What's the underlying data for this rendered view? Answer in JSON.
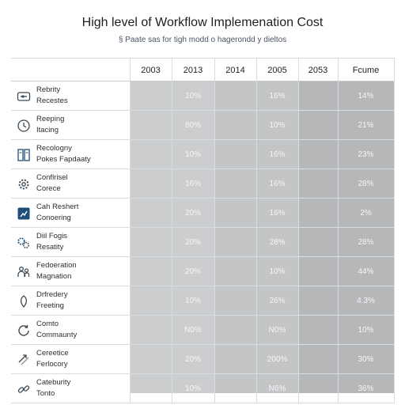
{
  "title": "High level of Workflow Implemenation Cost",
  "subtitle": "§ Paate sas for tigh modd o hagerondd y dieltos",
  "colors": {
    "col_light": "#cbcdcf",
    "col_mid": "#c3c5c7",
    "col_dark": "#b5b7b9",
    "icon": "#3b4a55",
    "icon_accent": "#1f4e79"
  },
  "chart_data": {
    "type": "table",
    "columns": [
      "2003",
      "2013",
      "2014",
      "2005",
      "2053",
      "Fcume"
    ],
    "rows": [
      {
        "label": [
          "Rebrity",
          "Recestes"
        ],
        "icon": "sliders-icon",
        "values": [
          "",
          "10%",
          "",
          "16%",
          "",
          "14%"
        ]
      },
      {
        "label": [
          "Reeping",
          "Itacing"
        ],
        "icon": "clock-icon",
        "values": [
          "",
          "80%",
          "",
          "10%",
          "",
          "21%"
        ]
      },
      {
        "label": [
          "Recologny",
          "Pokes Fapdaaty"
        ],
        "icon": "document-icon",
        "values": [
          "",
          "10%",
          "",
          "16%",
          "",
          "23%"
        ]
      },
      {
        "label": [
          "Conflrisel",
          "Corece"
        ],
        "icon": "gear-icon",
        "values": [
          "",
          "16%",
          "",
          "16%",
          "",
          "28%"
        ]
      },
      {
        "label": [
          "Cah Reshert",
          "Conoering"
        ],
        "icon": "chart-icon",
        "values": [
          "",
          "20%",
          "",
          "16%",
          "",
          "2%"
        ]
      },
      {
        "label": [
          "Diil Fogis",
          "Resatity"
        ],
        "icon": "cogs-icon",
        "values": [
          "",
          "20%",
          "",
          "28%",
          "",
          "28%"
        ]
      },
      {
        "label": [
          "Fedoeration",
          "Magnation"
        ],
        "icon": "people-icon",
        "values": [
          "",
          "20%",
          "",
          "10%",
          "",
          "44%"
        ]
      },
      {
        "label": [
          "Drfredery",
          "Freeting"
        ],
        "icon": "leaf-icon",
        "values": [
          "",
          "10%",
          "",
          "26%",
          "",
          "4.3%"
        ]
      },
      {
        "label": [
          "Comto",
          "Commaunty"
        ],
        "icon": "refresh-icon",
        "values": [
          "",
          "N0%",
          "",
          "N0%",
          "",
          "10%"
        ]
      },
      {
        "label": [
          "Cereetice",
          "Ferlocory"
        ],
        "icon": "arrows-icon",
        "values": [
          "",
          "20%",
          "",
          "200%",
          "",
          "30%"
        ]
      },
      {
        "label": [
          "Cateburity",
          "Tonto"
        ],
        "icon": "link-icon",
        "values": [
          "",
          "10%",
          "",
          "N6%",
          "",
          "36%"
        ]
      }
    ]
  }
}
